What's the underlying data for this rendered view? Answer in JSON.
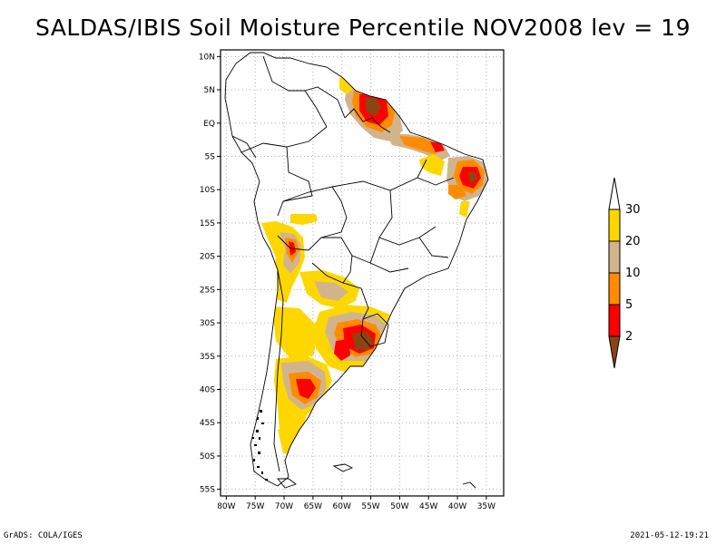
{
  "title": "SALDAS/IBIS Soil Moisture Percentile NOV2008 lev = 19",
  "footer": {
    "left": "GrADS: COLA/IGES",
    "right": "2021-05-12-19:21"
  },
  "chart_data": {
    "type": "heatmap",
    "title": "SALDAS/IBIS Soil Moisture Percentile NOV2008 lev = 19",
    "region": "South America",
    "xlim": [
      -81,
      -32
    ],
    "ylim": [
      -56,
      11
    ],
    "lat_ticks": [
      "10N",
      "5N",
      "EQ",
      "5S",
      "10S",
      "15S",
      "20S",
      "25S",
      "30S",
      "35S",
      "40S",
      "45S",
      "50S",
      "55S"
    ],
    "lon_ticks": [
      "80W",
      "75W",
      "70W",
      "65W",
      "60W",
      "55W",
      "50W",
      "45W",
      "40W",
      "35W"
    ],
    "lat_values": [
      10,
      5,
      0,
      -5,
      -10,
      -15,
      -20,
      -25,
      -30,
      -35,
      -40,
      -45,
      -50,
      -55
    ],
    "lon_values": [
      -80,
      -75,
      -70,
      -65,
      -60,
      -55,
      -50,
      -45,
      -40,
      -35
    ],
    "colorbar": {
      "levels": [
        "2",
        "5",
        "10",
        "20",
        "30"
      ],
      "colors": [
        "#8b4513",
        "#ff0000",
        "#ff8c00",
        "#d2b48c",
        "#ffd700",
        "#ffffff"
      ]
    },
    "colors": {
      "below2": "#8b4513",
      "p2to5": "#ff0000",
      "p5to10": "#ff8c00",
      "p10to20": "#d2b48c",
      "p20to30": "#ffd700",
      "above30": "#ffffff"
    }
  }
}
